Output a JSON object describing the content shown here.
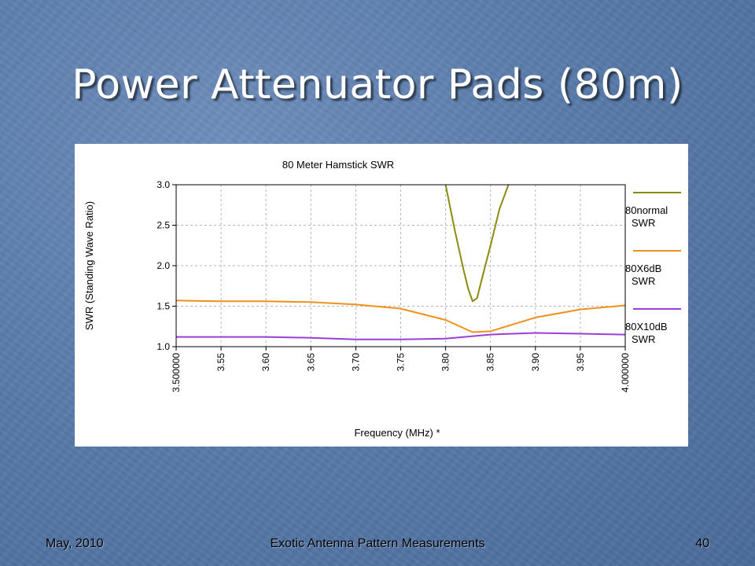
{
  "slide": {
    "title": "Power Attenuator Pads (80m)",
    "footer_left": "May, 2010",
    "footer_center": "Exotic Antenna Pattern Measurements",
    "footer_right": "40"
  },
  "chart_data": {
    "type": "line",
    "title": "80 Meter Hamstick SWR",
    "xlabel": "Frequency (MHz) *",
    "ylabel": "SWR  (Standing Wave Ratio)",
    "xlim": [
      3.5,
      4.0
    ],
    "ylim": [
      1.0,
      3.0
    ],
    "x_ticks": [
      "3.500000",
      "3.55",
      "3.60",
      "3.65",
      "3.70",
      "3.75",
      "3.80",
      "3.85",
      "3.90",
      "3.95",
      "4.000000"
    ],
    "y_ticks": [
      "1.0",
      "1.5",
      "2.0",
      "2.5",
      "3.0"
    ],
    "grid": true,
    "legend_position": "right",
    "series": [
      {
        "name": "80normal SWR",
        "color": "#8b8b12",
        "x": [
          3.8,
          3.81,
          3.82,
          3.825,
          3.83,
          3.835,
          3.84,
          3.85,
          3.86,
          3.87
        ],
        "y": [
          3.0,
          2.45,
          1.95,
          1.72,
          1.56,
          1.6,
          1.82,
          2.25,
          2.7,
          3.0
        ]
      },
      {
        "name": "80X6dB SWR",
        "color": "#f0901c",
        "x": [
          3.5,
          3.55,
          3.6,
          3.65,
          3.7,
          3.75,
          3.8,
          3.83,
          3.85,
          3.9,
          3.95,
          4.0
        ],
        "y": [
          1.57,
          1.56,
          1.56,
          1.55,
          1.52,
          1.47,
          1.33,
          1.18,
          1.19,
          1.36,
          1.46,
          1.51
        ]
      },
      {
        "name": "80X10dB SWR",
        "color": "#9a3fd6",
        "x": [
          3.5,
          3.55,
          3.6,
          3.65,
          3.7,
          3.75,
          3.8,
          3.85,
          3.9,
          3.95,
          4.0
        ],
        "y": [
          1.12,
          1.12,
          1.12,
          1.11,
          1.09,
          1.09,
          1.1,
          1.15,
          1.17,
          1.16,
          1.15
        ]
      }
    ]
  }
}
